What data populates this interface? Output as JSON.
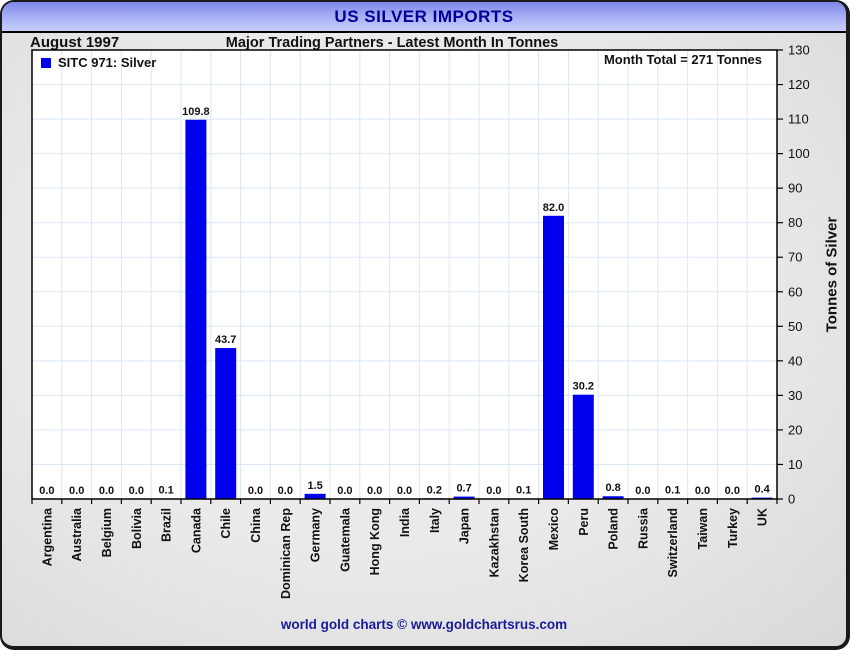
{
  "window": {
    "title": "US SILVER IMPORTS"
  },
  "subtitle": {
    "left": "August 1997",
    "center": "Major Trading Partners - Latest Month In Tonnes"
  },
  "legend": {
    "label": "SITC 971: Silver"
  },
  "annotations": {
    "month_total": "Month Total = 271 Tonnes"
  },
  "footer": {
    "text": "world gold charts © www.goldchartsrus.com"
  },
  "colors": {
    "bar": "#0000ee",
    "grid": "#dbe7f5",
    "axis": "#000000",
    "header_text": "#000099",
    "footer_text": "#1a1a99",
    "plot_background": "#ffffff"
  },
  "chart_data": {
    "type": "bar",
    "title": "US SILVER IMPORTS",
    "subtitle": "Major Trading Partners - Latest Month In Tonnes",
    "period": "August 1997",
    "series_name": "SITC 971: Silver",
    "month_total_tonnes": 271,
    "ylabel": "Tonnes of Silver",
    "ylim": [
      0,
      130
    ],
    "ytick_step": 10,
    "grid": true,
    "y_axis_position": "right",
    "categories": [
      "Argentina",
      "Australia",
      "Belgium",
      "Bolivia",
      "Brazil",
      "Canada",
      "Chile",
      "China",
      "Dominican Rep",
      "Germany",
      "Guatemala",
      "Hong Kong",
      "India",
      "Italy",
      "Japan",
      "Kazakhstan",
      "Korea South",
      "Mexico",
      "Peru",
      "Poland",
      "Russia",
      "Switzerland",
      "Taiwan",
      "Turkey",
      "UK"
    ],
    "values": [
      0.0,
      0.0,
      0.0,
      0.0,
      0.1,
      109.8,
      43.7,
      0.0,
      0.0,
      1.5,
      0.0,
      0.0,
      0.0,
      0.2,
      0.7,
      0.0,
      0.1,
      82.0,
      30.2,
      0.8,
      0.0,
      0.1,
      0.0,
      0.0,
      0.4
    ],
    "value_labels": [
      "0.0",
      "0.0",
      "0.0",
      "0.0",
      "0.1",
      "109.8",
      "43.7",
      "0.0",
      "0.0",
      "1.5",
      "0.0",
      "0.0",
      "0.0",
      "0.2",
      "0.7",
      "0.0",
      "0.1",
      "82.0",
      "30.2",
      "0.8",
      "0.0",
      "0.1",
      "0.0",
      "0.0",
      "0.4"
    ]
  }
}
